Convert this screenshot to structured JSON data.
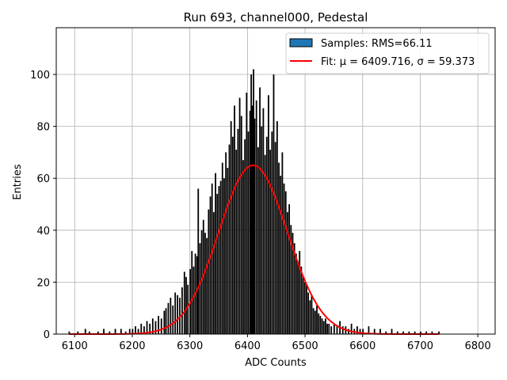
{
  "chart_data": {
    "type": "bar",
    "title": "Run 693, channel000, Pedestal",
    "xlabel": "ADC Counts",
    "ylabel": "Entries",
    "xlim": [
      6068,
      6830
    ],
    "ylim": [
      0,
      118
    ],
    "xticks": [
      6100,
      6200,
      6300,
      6400,
      6500,
      6600,
      6700,
      6800
    ],
    "yticks": [
      0,
      20,
      40,
      60,
      80,
      100
    ],
    "grid": true,
    "legend_position": "top-right",
    "series": [
      {
        "name": "Samples: RMS=66.11",
        "type": "histogram",
        "color": "#1f77b4",
        "bin_width": 1,
        "bins": [
          [
            6090,
            1
          ],
          [
            6105,
            1
          ],
          [
            6118,
            2
          ],
          [
            6125,
            1
          ],
          [
            6140,
            1
          ],
          [
            6150,
            2
          ],
          [
            6160,
            1
          ],
          [
            6170,
            2
          ],
          [
            6180,
            2
          ],
          [
            6188,
            1
          ],
          [
            6195,
            2
          ],
          [
            6200,
            2
          ],
          [
            6205,
            3
          ],
          [
            6210,
            2
          ],
          [
            6215,
            4
          ],
          [
            6220,
            3
          ],
          [
            6225,
            5
          ],
          [
            6230,
            4
          ],
          [
            6235,
            6
          ],
          [
            6240,
            5
          ],
          [
            6245,
            7
          ],
          [
            6250,
            6
          ],
          [
            6255,
            9
          ],
          [
            6258,
            10
          ],
          [
            6262,
            12
          ],
          [
            6266,
            14
          ],
          [
            6270,
            11
          ],
          [
            6274,
            16
          ],
          [
            6278,
            15
          ],
          [
            6282,
            14
          ],
          [
            6286,
            18
          ],
          [
            6290,
            24
          ],
          [
            6293,
            22
          ],
          [
            6296,
            19
          ],
          [
            6300,
            25
          ],
          [
            6303,
            32
          ],
          [
            6306,
            26
          ],
          [
            6309,
            31
          ],
          [
            6312,
            30
          ],
          [
            6314,
            56
          ],
          [
            6317,
            35
          ],
          [
            6320,
            40
          ],
          [
            6323,
            44
          ],
          [
            6326,
            39
          ],
          [
            6329,
            37
          ],
          [
            6332,
            48
          ],
          [
            6335,
            53
          ],
          [
            6338,
            58
          ],
          [
            6341,
            47
          ],
          [
            6344,
            62
          ],
          [
            6347,
            54
          ],
          [
            6350,
            57
          ],
          [
            6353,
            59
          ],
          [
            6356,
            66
          ],
          [
            6359,
            60
          ],
          [
            6362,
            70
          ],
          [
            6365,
            64
          ],
          [
            6368,
            73
          ],
          [
            6371,
            82
          ],
          [
            6374,
            76
          ],
          [
            6377,
            88
          ],
          [
            6380,
            71
          ],
          [
            6383,
            79
          ],
          [
            6386,
            91
          ],
          [
            6389,
            84
          ],
          [
            6392,
            67
          ],
          [
            6395,
            75
          ],
          [
            6398,
            93
          ],
          [
            6401,
            78
          ],
          [
            6404,
            86
          ],
          [
            6406,
            100
          ],
          [
            6408,
            88
          ],
          [
            6410,
            102
          ],
          [
            6412,
            83
          ],
          [
            6415,
            90
          ],
          [
            6418,
            72
          ],
          [
            6421,
            95
          ],
          [
            6424,
            80
          ],
          [
            6427,
            87
          ],
          [
            6430,
            69
          ],
          [
            6433,
            76
          ],
          [
            6436,
            92
          ],
          [
            6439,
            71
          ],
          [
            6442,
            78
          ],
          [
            6445,
            100
          ],
          [
            6448,
            74
          ],
          [
            6451,
            82
          ],
          [
            6454,
            66
          ],
          [
            6457,
            61
          ],
          [
            6460,
            70
          ],
          [
            6463,
            58
          ],
          [
            6466,
            55
          ],
          [
            6469,
            47
          ],
          [
            6472,
            50
          ],
          [
            6475,
            42
          ],
          [
            6478,
            39
          ],
          [
            6481,
            35
          ],
          [
            6484,
            31
          ],
          [
            6487,
            28
          ],
          [
            6490,
            32
          ],
          [
            6493,
            26
          ],
          [
            6496,
            22
          ],
          [
            6499,
            20
          ],
          [
            6502,
            19
          ],
          [
            6505,
            16
          ],
          [
            6508,
            13
          ],
          [
            6511,
            15
          ],
          [
            6514,
            10
          ],
          [
            6517,
            9
          ],
          [
            6520,
            11
          ],
          [
            6523,
            8
          ],
          [
            6526,
            7
          ],
          [
            6529,
            6
          ],
          [
            6532,
            5
          ],
          [
            6535,
            6
          ],
          [
            6538,
            4
          ],
          [
            6541,
            4
          ],
          [
            6545,
            3
          ],
          [
            6550,
            4
          ],
          [
            6555,
            3
          ],
          [
            6560,
            5
          ],
          [
            6565,
            3
          ],
          [
            6570,
            3
          ],
          [
            6575,
            2
          ],
          [
            6580,
            4
          ],
          [
            6585,
            2
          ],
          [
            6590,
            3
          ],
          [
            6595,
            2
          ],
          [
            6600,
            2
          ],
          [
            6610,
            3
          ],
          [
            6620,
            2
          ],
          [
            6630,
            2
          ],
          [
            6640,
            1
          ],
          [
            6650,
            2
          ],
          [
            6660,
            1
          ],
          [
            6670,
            1
          ],
          [
            6680,
            1
          ],
          [
            6690,
            1
          ],
          [
            6700,
            1
          ],
          [
            6710,
            1
          ],
          [
            6720,
            1
          ],
          [
            6732,
            1
          ]
        ]
      },
      {
        "name": "Fit: μ = 6409.716, σ = 59.373",
        "type": "gaussian",
        "color": "#ff0000",
        "mu": 6409.716,
        "sigma": 59.373,
        "amplitude": 65,
        "x_range": [
          6090,
          6732
        ]
      }
    ]
  }
}
